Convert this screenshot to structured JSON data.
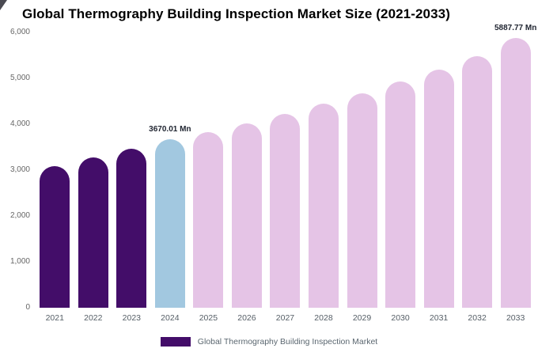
{
  "title": "Global Thermography Building Inspection Market Size (2021-2033)",
  "colors": {
    "historical": "#430d69",
    "current": "#a2c8e0",
    "forecast": "#e5c4e6",
    "axis_text": "#666666",
    "annotation_text": "#1f2430",
    "legend_text": "#5b6770"
  },
  "legend": {
    "label": "Global Thermography Building Inspection Market"
  },
  "chart_data": {
    "type": "bar",
    "title": "Global Thermography Building Inspection Market Size (2021-2033)",
    "series_name": "Global Thermography Building Inspection Market",
    "unit": "Mn",
    "categories": [
      "2021",
      "2022",
      "2023",
      "2024",
      "2025",
      "2026",
      "2027",
      "2028",
      "2029",
      "2030",
      "2031",
      "2032",
      "2033"
    ],
    "values": [
      3080,
      3270,
      3460,
      3670.01,
      3830,
      4020,
      4230,
      4450,
      4670,
      4930,
      5190,
      5490,
      5887.77
    ],
    "bar_roles": [
      "historical",
      "historical",
      "historical",
      "current",
      "forecast",
      "forecast",
      "forecast",
      "forecast",
      "forecast",
      "forecast",
      "forecast",
      "forecast",
      "forecast"
    ],
    "annotations": [
      {
        "index": 3,
        "text": "3670.01 Mn"
      },
      {
        "index": 12,
        "text": "5887.77 Mn"
      }
    ],
    "ylim": [
      0,
      6000
    ],
    "yticks": [
      {
        "value": 0,
        "label": "0"
      },
      {
        "value": 1000,
        "label": "1,000"
      },
      {
        "value": 2000,
        "label": "2,000"
      },
      {
        "value": 3000,
        "label": "3,000"
      },
      {
        "value": 4000,
        "label": "4,000"
      },
      {
        "value": 5000,
        "label": "5,000"
      },
      {
        "value": 6000,
        "label": "6,000"
      }
    ],
    "grid": false,
    "legend_position": "bottom"
  }
}
